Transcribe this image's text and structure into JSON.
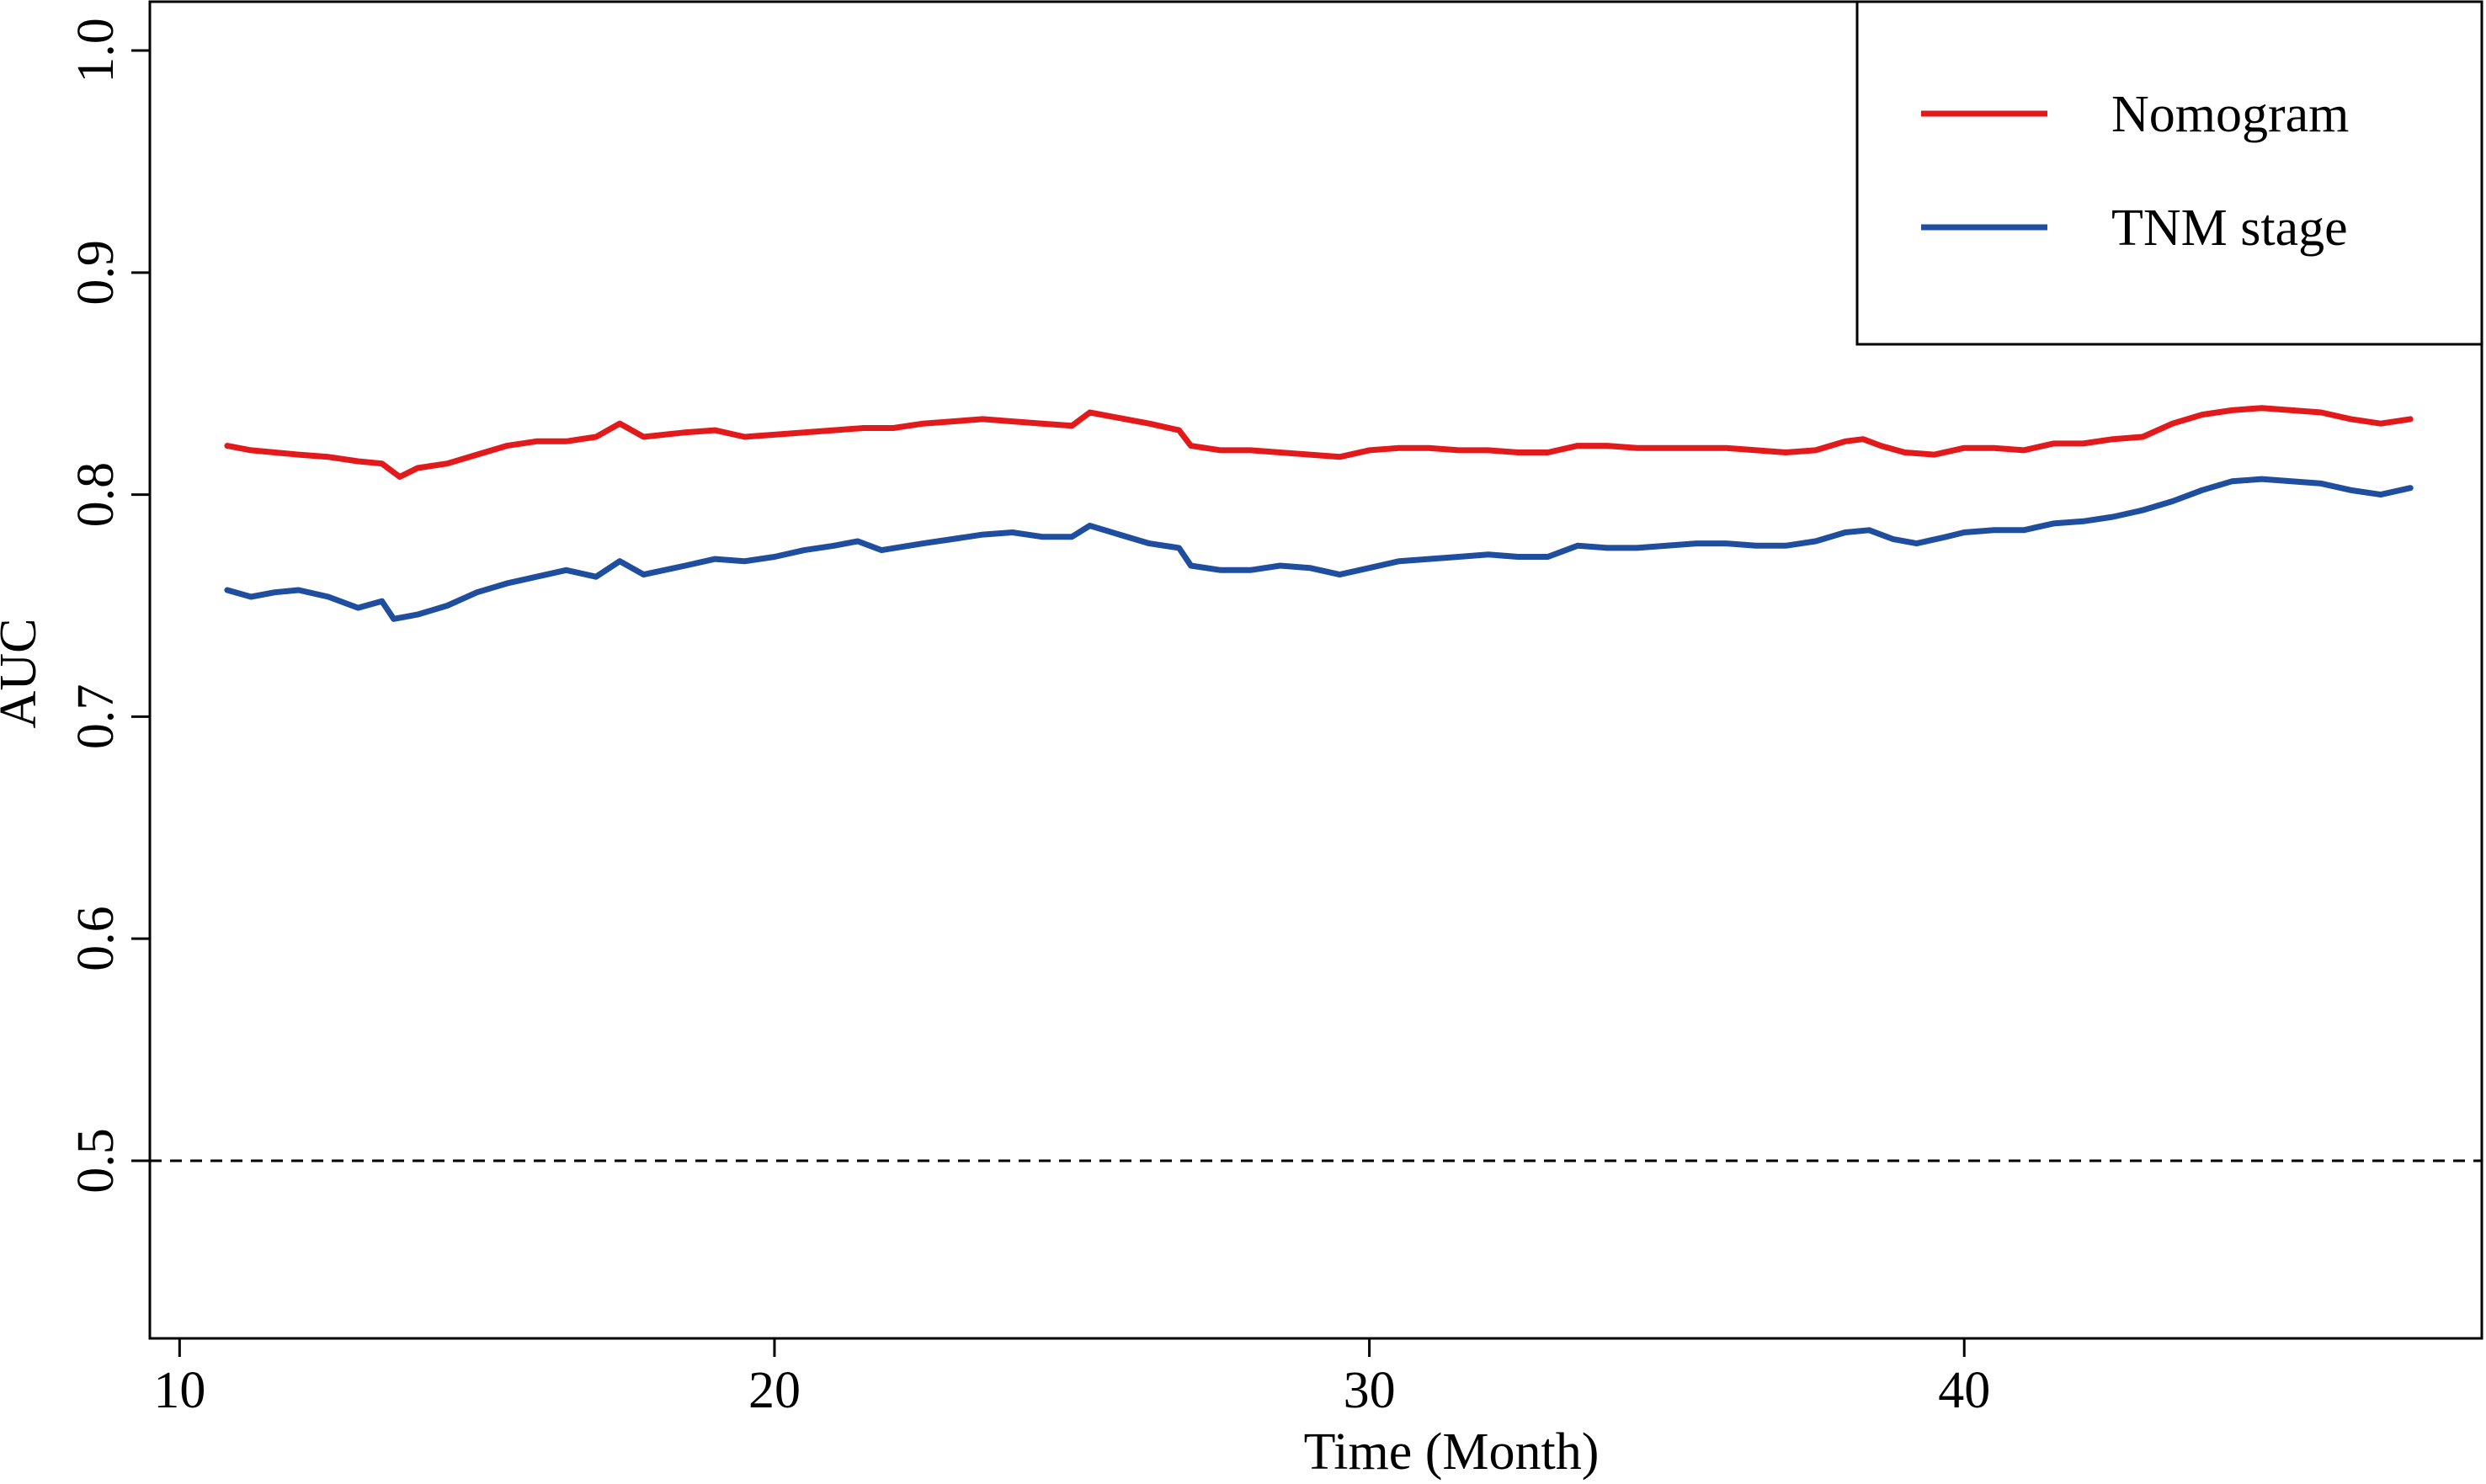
{
  "chart_data": {
    "type": "line",
    "title": "",
    "xlabel": "Time (Month)",
    "ylabel": "AUC",
    "xlim": [
      9.5,
      48.7
    ],
    "ylim": [
      0.42,
      1.022
    ],
    "x_ticks": [
      10,
      20,
      30,
      40
    ],
    "x_tick_labels": [
      "10",
      "20",
      "30",
      "40"
    ],
    "y_ticks": [
      0.5,
      0.6,
      0.7,
      0.8,
      0.9,
      1.0
    ],
    "y_tick_labels": [
      "0.5",
      "0.6",
      "0.7",
      "0.8",
      "0.9",
      "1.0"
    ],
    "reference_line": {
      "y": 0.5,
      "style": "dashed",
      "color": "#000000"
    },
    "grid": false,
    "legend": {
      "position": "top-right",
      "boxed": true
    },
    "series": [
      {
        "name": "Nomogram",
        "color": "#e31a1c",
        "points": [
          [
            10.8,
            0.822
          ],
          [
            11.2,
            0.82
          ],
          [
            11.6,
            0.819
          ],
          [
            12.0,
            0.818
          ],
          [
            12.5,
            0.817
          ],
          [
            13.0,
            0.815
          ],
          [
            13.4,
            0.814
          ],
          [
            13.7,
            0.808
          ],
          [
            14.0,
            0.812
          ],
          [
            14.5,
            0.814
          ],
          [
            15.0,
            0.818
          ],
          [
            15.5,
            0.822
          ],
          [
            16.0,
            0.824
          ],
          [
            16.5,
            0.824
          ],
          [
            17.0,
            0.826
          ],
          [
            17.4,
            0.832
          ],
          [
            17.8,
            0.826
          ],
          [
            18.5,
            0.828
          ],
          [
            19.0,
            0.829
          ],
          [
            19.5,
            0.826
          ],
          [
            20.0,
            0.827
          ],
          [
            20.5,
            0.828
          ],
          [
            21.0,
            0.829
          ],
          [
            21.5,
            0.83
          ],
          [
            22.0,
            0.83
          ],
          [
            22.5,
            0.832
          ],
          [
            23.0,
            0.833
          ],
          [
            23.5,
            0.834
          ],
          [
            24.0,
            0.833
          ],
          [
            24.5,
            0.832
          ],
          [
            25.0,
            0.831
          ],
          [
            25.3,
            0.837
          ],
          [
            25.7,
            0.835
          ],
          [
            26.3,
            0.832
          ],
          [
            26.8,
            0.829
          ],
          [
            27.0,
            0.822
          ],
          [
            27.5,
            0.82
          ],
          [
            28.0,
            0.82
          ],
          [
            28.5,
            0.819
          ],
          [
            29.0,
            0.818
          ],
          [
            29.5,
            0.817
          ],
          [
            30.0,
            0.82
          ],
          [
            30.5,
            0.821
          ],
          [
            31.0,
            0.821
          ],
          [
            31.5,
            0.82
          ],
          [
            32.0,
            0.82
          ],
          [
            32.5,
            0.819
          ],
          [
            33.0,
            0.819
          ],
          [
            33.5,
            0.822
          ],
          [
            34.0,
            0.822
          ],
          [
            34.5,
            0.821
          ],
          [
            35.0,
            0.821
          ],
          [
            35.5,
            0.821
          ],
          [
            36.0,
            0.821
          ],
          [
            36.5,
            0.82
          ],
          [
            37.0,
            0.819
          ],
          [
            37.5,
            0.82
          ],
          [
            38.0,
            0.824
          ],
          [
            38.3,
            0.825
          ],
          [
            38.6,
            0.822
          ],
          [
            39.0,
            0.819
          ],
          [
            39.5,
            0.818
          ],
          [
            40.0,
            0.821
          ],
          [
            40.5,
            0.821
          ],
          [
            41.0,
            0.82
          ],
          [
            41.5,
            0.823
          ],
          [
            42.0,
            0.823
          ],
          [
            42.5,
            0.825
          ],
          [
            43.0,
            0.826
          ],
          [
            43.5,
            0.832
          ],
          [
            44.0,
            0.836
          ],
          [
            44.5,
            0.838
          ],
          [
            45.0,
            0.839
          ],
          [
            45.5,
            0.838
          ],
          [
            46.0,
            0.837
          ],
          [
            46.5,
            0.834
          ],
          [
            47.0,
            0.832
          ],
          [
            47.5,
            0.834
          ]
        ]
      },
      {
        "name": "TNM stage",
        "color": "#1f4e9e",
        "points": [
          [
            10.8,
            0.757
          ],
          [
            11.2,
            0.754
          ],
          [
            11.6,
            0.756
          ],
          [
            12.0,
            0.757
          ],
          [
            12.5,
            0.754
          ],
          [
            13.0,
            0.749
          ],
          [
            13.4,
            0.752
          ],
          [
            13.6,
            0.744
          ],
          [
            14.0,
            0.746
          ],
          [
            14.5,
            0.75
          ],
          [
            15.0,
            0.756
          ],
          [
            15.5,
            0.76
          ],
          [
            16.0,
            0.763
          ],
          [
            16.5,
            0.766
          ],
          [
            17.0,
            0.763
          ],
          [
            17.4,
            0.77
          ],
          [
            17.8,
            0.764
          ],
          [
            18.5,
            0.768
          ],
          [
            19.0,
            0.771
          ],
          [
            19.5,
            0.77
          ],
          [
            20.0,
            0.772
          ],
          [
            20.5,
            0.775
          ],
          [
            21.0,
            0.777
          ],
          [
            21.4,
            0.779
          ],
          [
            21.8,
            0.775
          ],
          [
            22.5,
            0.778
          ],
          [
            23.0,
            0.78
          ],
          [
            23.5,
            0.782
          ],
          [
            24.0,
            0.783
          ],
          [
            24.5,
            0.781
          ],
          [
            25.0,
            0.781
          ],
          [
            25.3,
            0.786
          ],
          [
            25.8,
            0.782
          ],
          [
            26.3,
            0.778
          ],
          [
            26.8,
            0.776
          ],
          [
            27.0,
            0.768
          ],
          [
            27.5,
            0.766
          ],
          [
            28.0,
            0.766
          ],
          [
            28.5,
            0.768
          ],
          [
            29.0,
            0.767
          ],
          [
            29.5,
            0.764
          ],
          [
            30.0,
            0.767
          ],
          [
            30.5,
            0.77
          ],
          [
            31.0,
            0.771
          ],
          [
            31.5,
            0.772
          ],
          [
            32.0,
            0.773
          ],
          [
            32.5,
            0.772
          ],
          [
            33.0,
            0.772
          ],
          [
            33.5,
            0.777
          ],
          [
            34.0,
            0.776
          ],
          [
            34.5,
            0.776
          ],
          [
            35.0,
            0.777
          ],
          [
            35.5,
            0.778
          ],
          [
            36.0,
            0.778
          ],
          [
            36.5,
            0.777
          ],
          [
            37.0,
            0.777
          ],
          [
            37.5,
            0.779
          ],
          [
            38.0,
            0.783
          ],
          [
            38.4,
            0.784
          ],
          [
            38.8,
            0.78
          ],
          [
            39.2,
            0.778
          ],
          [
            39.7,
            0.781
          ],
          [
            40.0,
            0.783
          ],
          [
            40.5,
            0.784
          ],
          [
            41.0,
            0.784
          ],
          [
            41.5,
            0.787
          ],
          [
            42.0,
            0.788
          ],
          [
            42.5,
            0.79
          ],
          [
            43.0,
            0.793
          ],
          [
            43.5,
            0.797
          ],
          [
            44.0,
            0.802
          ],
          [
            44.5,
            0.806
          ],
          [
            45.0,
            0.807
          ],
          [
            45.5,
            0.806
          ],
          [
            46.0,
            0.805
          ],
          [
            46.5,
            0.802
          ],
          [
            47.0,
            0.8
          ],
          [
            47.5,
            0.803
          ]
        ]
      }
    ]
  }
}
